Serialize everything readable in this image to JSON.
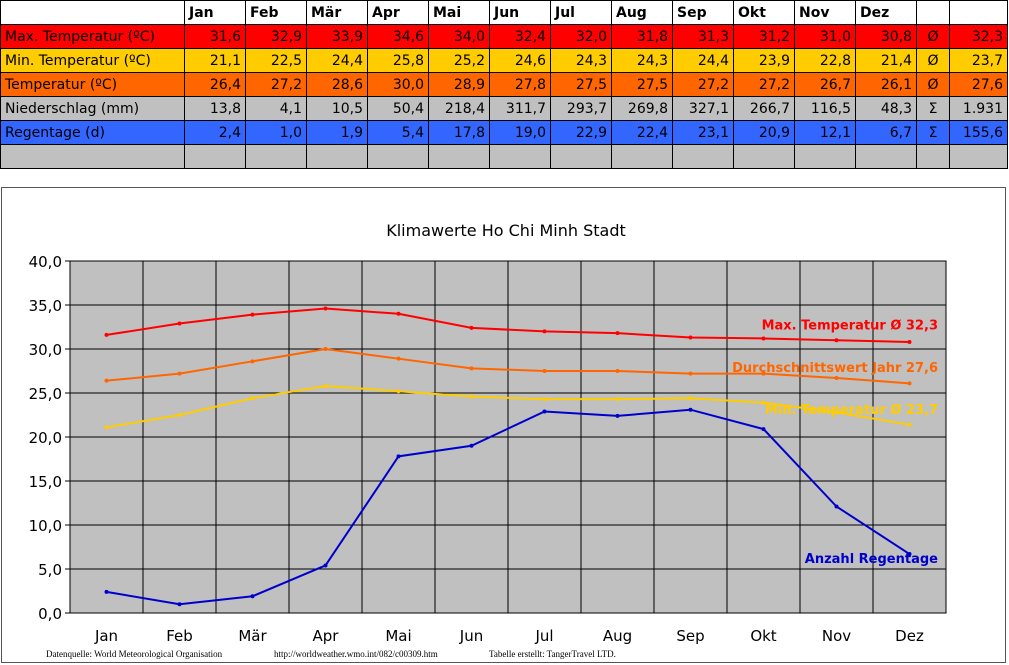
{
  "table": {
    "months": [
      "Jan",
      "Feb",
      "Mär",
      "Apr",
      "Mai",
      "Jun",
      "Jul",
      "Aug",
      "Sep",
      "Okt",
      "Nov",
      "Dez"
    ],
    "rows": [
      {
        "label": "Max. Temperatur (ºC)",
        "color": "#ff0000",
        "values": [
          "31,6",
          "32,9",
          "33,9",
          "34,6",
          "34,0",
          "32,4",
          "32,0",
          "31,8",
          "31,3",
          "31,2",
          "31,0",
          "30,8"
        ],
        "symbol": "Ø",
        "total": "32,3"
      },
      {
        "label": "Min. Temperatur (ºC)",
        "color": "#ffcc00",
        "values": [
          "21,1",
          "22,5",
          "24,4",
          "25,8",
          "25,2",
          "24,6",
          "24,3",
          "24,3",
          "24,4",
          "23,9",
          "22,8",
          "21,4"
        ],
        "symbol": "Ø",
        "total": "23,7"
      },
      {
        "label": "Temperatur (ºC)",
        "color": "#ff6600",
        "values": [
          "26,4",
          "27,2",
          "28,6",
          "30,0",
          "28,9",
          "27,8",
          "27,5",
          "27,5",
          "27,2",
          "27,2",
          "26,7",
          "26,1"
        ],
        "symbol": "Ø",
        "total": "27,6"
      },
      {
        "label": "Niederschlag (mm)",
        "color": "#c0c0c0",
        "values": [
          "13,8",
          "4,1",
          "10,5",
          "50,4",
          "218,4",
          "311,7",
          "293,7",
          "269,8",
          "327,1",
          "266,7",
          "116,5",
          "48,3"
        ],
        "symbol": "Σ",
        "total": "1.931"
      },
      {
        "label": "Regentage (d)",
        "color": "#3366ff",
        "values": [
          "2,4",
          "1,0",
          "1,9",
          "5,4",
          "17,8",
          "19,0",
          "22,9",
          "22,4",
          "23,1",
          "20,9",
          "12,1",
          "6,7"
        ],
        "symbol": "Σ",
        "total": "155,6"
      },
      {
        "label": "",
        "color": "#c0c0c0",
        "values": [
          "",
          "",
          "",
          "",
          "",
          "",
          "",
          "",
          "",
          "",
          "",
          ""
        ],
        "symbol": "",
        "total": ""
      }
    ]
  },
  "chart_data": {
    "type": "line",
    "title": "Klimawerte Ho Chi Minh Stadt",
    "categories": [
      "Jan",
      "Feb",
      "Mär",
      "Apr",
      "Mai",
      "Jun",
      "Jul",
      "Aug",
      "Sep",
      "Okt",
      "Nov",
      "Dez"
    ],
    "ylim": [
      0,
      40
    ],
    "yticks": [
      "0,0",
      "5,0",
      "10,0",
      "15,0",
      "20,0",
      "25,0",
      "30,0",
      "35,0",
      "40,0"
    ],
    "grid": true,
    "plot_bg": "#c0c0c0",
    "series": [
      {
        "name": "Max. Temperatur Ø 32,3",
        "color": "#ff0000",
        "values": [
          31.6,
          32.9,
          33.9,
          34.6,
          34.0,
          32.4,
          32.0,
          31.8,
          31.3,
          31.2,
          31.0,
          30.8
        ]
      },
      {
        "name": "Durchschnittswert Jahr 27,6",
        "color": "#ff6600",
        "values": [
          26.4,
          27.2,
          28.6,
          30.0,
          28.9,
          27.8,
          27.5,
          27.5,
          27.2,
          27.2,
          26.7,
          26.1
        ]
      },
      {
        "name": "Min. Temperatur Ø 23,7",
        "color": "#ffcc00",
        "values": [
          21.1,
          22.5,
          24.4,
          25.8,
          25.2,
          24.6,
          24.3,
          24.3,
          24.4,
          23.9,
          22.8,
          21.4
        ]
      },
      {
        "name": "Anzahl Regentage",
        "color": "#0000cc",
        "values": [
          2.4,
          1.0,
          1.9,
          5.4,
          17.8,
          19.0,
          22.9,
          22.4,
          23.1,
          20.9,
          12.1,
          6.7
        ]
      }
    ]
  },
  "footer": {
    "source": "Datenquelle: World Meteorological Organisation",
    "url": "http://worldweather.wmo.int/082/c00309.htm",
    "creator": "Tabelle erstellt: TangerTravel LTD."
  }
}
